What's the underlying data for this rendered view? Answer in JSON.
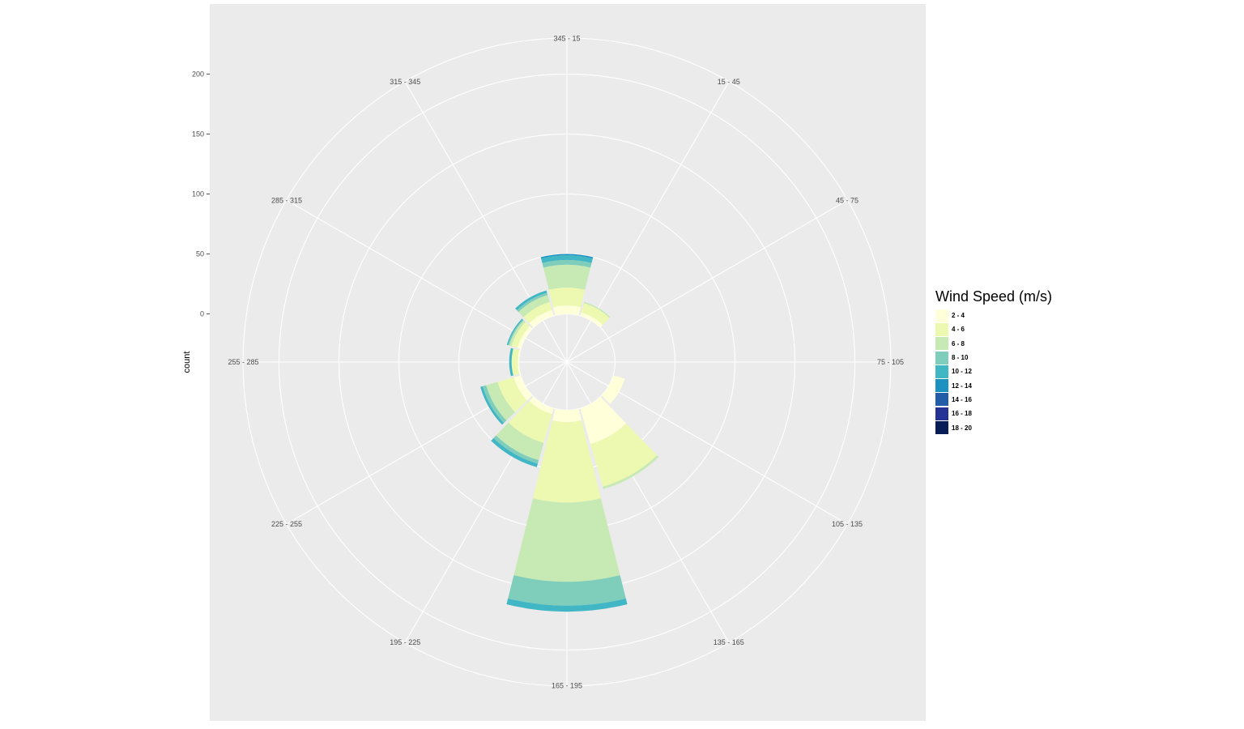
{
  "chart_data": {
    "type": "bar",
    "coord": "polar",
    "title": "",
    "ylabel": "count",
    "xlabel": "",
    "directions": [
      "345 - 15",
      "15 - 45",
      "45 - 75",
      "75 - 105",
      "105 - 135",
      "135 - 165",
      "165 - 195",
      "195 - 225",
      "225 - 255",
      "255 - 285",
      "285 - 315",
      "315 - 345"
    ],
    "yticks": [
      0,
      50,
      100,
      150,
      200
    ],
    "ylim": [
      -30,
      230
    ],
    "legend_title": "Wind Speed (m/s)",
    "legend_position": "right",
    "stacked": true,
    "series": [
      {
        "name": "2 - 4",
        "color": "#FFFFD9",
        "values": [
          7,
          3,
          0,
          0,
          10,
          31,
          10,
          5,
          6,
          1,
          3,
          5
        ]
      },
      {
        "name": "4 - 6",
        "color": "#EDF8B1",
        "values": [
          15,
          8,
          0,
          0,
          0,
          37,
          67,
          25,
          14,
          5,
          5,
          7
        ]
      },
      {
        "name": "6 - 8",
        "color": "#C7E9B4",
        "values": [
          19,
          1,
          0,
          0,
          0,
          2,
          66,
          15,
          10,
          0,
          2,
          6
        ]
      },
      {
        "name": "8 - 10",
        "color": "#7FCDBB",
        "values": [
          4,
          0,
          0,
          0,
          0,
          0,
          20,
          3,
          3,
          0,
          1,
          2
        ]
      },
      {
        "name": "10 - 12",
        "color": "#41B6C4",
        "values": [
          4,
          0,
          0,
          0,
          0,
          0,
          5,
          3,
          2,
          2,
          1,
          2
        ]
      },
      {
        "name": "12 - 14",
        "color": "#1D91C0",
        "values": [
          1,
          0,
          0,
          0,
          0,
          0,
          0,
          0,
          0,
          0,
          0,
          0
        ]
      },
      {
        "name": "14 - 16",
        "color": "#225EA8",
        "values": [
          0,
          0,
          0,
          0,
          0,
          0,
          0,
          0,
          0,
          0,
          0,
          0
        ]
      },
      {
        "name": "16 - 18",
        "color": "#253494",
        "values": [
          0,
          0,
          0,
          0,
          0,
          0,
          0,
          0,
          0,
          0,
          0,
          0
        ]
      },
      {
        "name": "18 - 20",
        "color": "#081D58",
        "values": [
          0,
          0,
          0,
          0,
          0,
          0,
          0,
          0,
          0,
          0,
          0,
          0
        ]
      }
    ],
    "panel_background": "#EBEBEB",
    "grid_color": "#FFFFFF",
    "grid": true
  }
}
